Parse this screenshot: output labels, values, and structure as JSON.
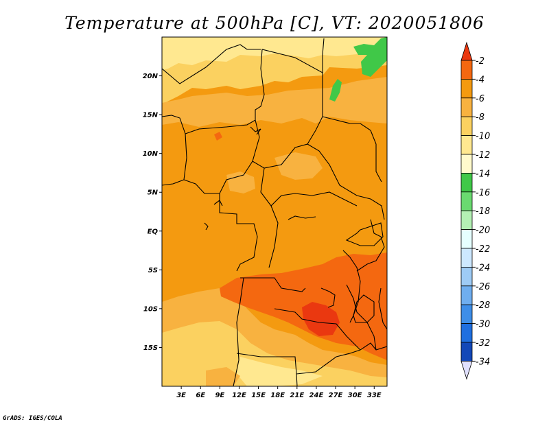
{
  "title": "Temperature at 500hPa [C], VT: 2020051806",
  "credit": "GrADS: IGES/COLA",
  "map": {
    "lon_range": [
      0,
      35
    ],
    "lat_range": [
      -20,
      25
    ],
    "lon_ticks": [
      {
        "value": 3,
        "label": "3E"
      },
      {
        "value": 6,
        "label": "6E"
      },
      {
        "value": 9,
        "label": "9E"
      },
      {
        "value": 12,
        "label": "12E"
      },
      {
        "value": 15,
        "label": "15E"
      },
      {
        "value": 18,
        "label": "18E"
      },
      {
        "value": 21,
        "label": "21E"
      },
      {
        "value": 24,
        "label": "24E"
      },
      {
        "value": 27,
        "label": "27E"
      },
      {
        "value": 30,
        "label": "30E"
      },
      {
        "value": 33,
        "label": "33E"
      }
    ],
    "lat_ticks": [
      {
        "value": 20,
        "label": "20N"
      },
      {
        "value": 15,
        "label": "15N"
      },
      {
        "value": 10,
        "label": "10N"
      },
      {
        "value": 5,
        "label": "5N"
      },
      {
        "value": 0,
        "label": "EQ"
      },
      {
        "value": -5,
        "label": "5S"
      },
      {
        "value": -10,
        "label": "10S"
      },
      {
        "value": -15,
        "label": "15S"
      }
    ],
    "colors": {
      "c_10": "#ffe890",
      "c_8": "#fbd160",
      "c_6": "#f8b240",
      "c_4": "#f49a10",
      "c_2": "#f46810",
      "c_0": "#ea3810",
      "green_12": "#40c848"
    }
  },
  "colorbar": {
    "levels": [
      {
        "label": "-2",
        "color": "#f46810"
      },
      {
        "label": "-4",
        "color": "#f49a10"
      },
      {
        "label": "-6",
        "color": "#f8b240"
      },
      {
        "label": "-8",
        "color": "#fbd160"
      },
      {
        "label": "-10",
        "color": "#ffe890"
      },
      {
        "label": "-12",
        "color": "#fffacc"
      },
      {
        "label": "-14",
        "color": "#40c848"
      },
      {
        "label": "-16",
        "color": "#6ada70"
      },
      {
        "label": "-18",
        "color": "#b4f0b4"
      },
      {
        "label": "-20",
        "color": "#e6ffff"
      },
      {
        "label": "-22",
        "color": "#cde8ff"
      },
      {
        "label": "-24",
        "color": "#9ecbf5"
      },
      {
        "label": "-26",
        "color": "#6faeef"
      },
      {
        "label": "-28",
        "color": "#3e8ee8"
      },
      {
        "label": "-30",
        "color": "#1f6fe0"
      },
      {
        "label": "-32",
        "color": "#1348b8"
      },
      {
        "label": "-34",
        "color": "#0b2080"
      }
    ],
    "top_color": "#ea3810",
    "bottom_color": "#e0e0ff"
  }
}
